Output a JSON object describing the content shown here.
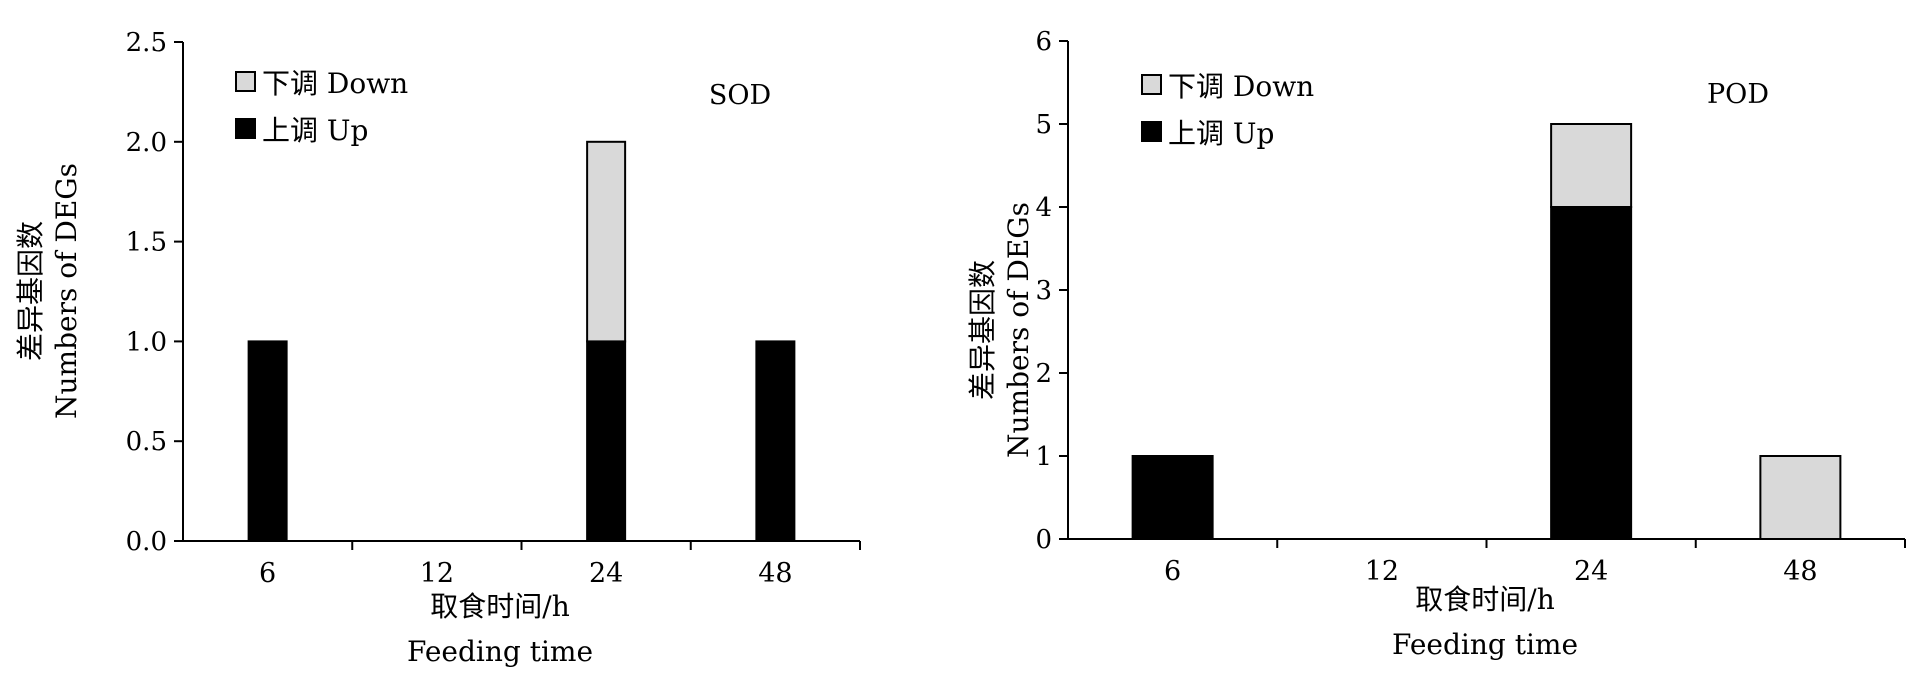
{
  "chart_data": [
    {
      "type": "bar",
      "stacked": true,
      "title": "SOD",
      "categories": [
        "6",
        "12",
        "24",
        "48"
      ],
      "series": [
        {
          "name": "上调 Up",
          "values": [
            1,
            0,
            1,
            1
          ],
          "color": "#000000"
        },
        {
          "name": "下调 Down",
          "values": [
            0,
            0,
            1,
            0
          ],
          "color": "#d9d9d9"
        }
      ],
      "ylim": [
        0,
        2.5
      ],
      "yticks": [
        "0.0",
        "0.5",
        "1.0",
        "1.5",
        "2.0",
        "2.5"
      ],
      "xlabel": [
        "取食时间/h",
        "Feeding time"
      ],
      "ylabel": [
        "差异基因数",
        "Numbers of DEGs"
      ],
      "legend_position": "top-left",
      "grid": false
    },
    {
      "type": "bar",
      "stacked": true,
      "title": "POD",
      "categories": [
        "6",
        "12",
        "24",
        "48"
      ],
      "series": [
        {
          "name": "上调 Up",
          "values": [
            1,
            0,
            4,
            0
          ],
          "color": "#000000"
        },
        {
          "name": "下调 Down",
          "values": [
            0,
            0,
            1,
            1
          ],
          "color": "#d9d9d9"
        }
      ],
      "ylim": [
        0,
        6
      ],
      "yticks": [
        "0",
        "1",
        "2",
        "3",
        "4",
        "5",
        "6"
      ],
      "xlabel": [
        "取食时间/h",
        "Feeding time"
      ],
      "ylabel": [
        "差异基因数",
        "Numbers of DEGs"
      ],
      "legend_position": "top-left",
      "grid": false
    }
  ]
}
